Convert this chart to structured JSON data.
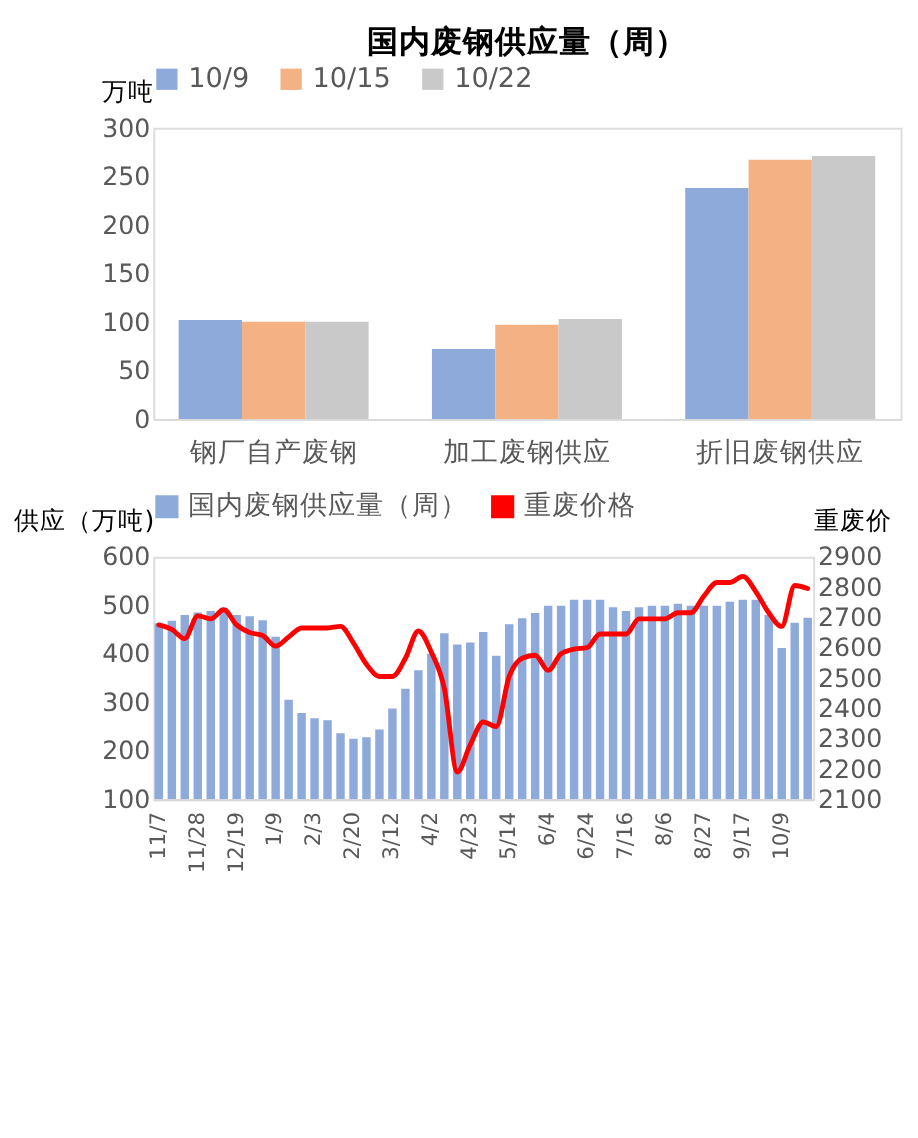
{
  "chart_data": [
    {
      "type": "bar",
      "title": "国内废钢供应量（周）",
      "ylabel": "万吨",
      "categories": [
        "钢厂自产废钢",
        "加工废钢供应",
        "折旧废钢供应"
      ],
      "series": [
        {
          "name": "10/9",
          "color": "#8eaadb",
          "values": [
            102,
            72,
            238
          ]
        },
        {
          "name": "10/15",
          "color": "#f4b183",
          "values": [
            100,
            97,
            267
          ]
        },
        {
          "name": "10/22",
          "color": "#c9c9c9",
          "values": [
            100,
            103,
            271
          ]
        }
      ],
      "ylim": [
        0,
        300
      ],
      "yticks": [
        0,
        50,
        100,
        150,
        200,
        250,
        300
      ],
      "grid": false,
      "legend": "top"
    },
    {
      "type": "bar",
      "ylabel": "供应（万吨)",
      "y2label": "重废价",
      "categories": [
        "11/7",
        null,
        null,
        "11/28",
        null,
        null,
        "12/19",
        null,
        null,
        "1/9",
        null,
        null,
        "2/3",
        null,
        null,
        "2/20",
        null,
        null,
        "3/12",
        null,
        null,
        "4/2",
        null,
        null,
        "4/23",
        null,
        null,
        "5/14",
        null,
        null,
        "6/4",
        null,
        null,
        "6/24",
        null,
        null,
        "7/16",
        null,
        null,
        "8/6",
        null,
        null,
        "8/27",
        null,
        null,
        "9/17",
        null,
        null,
        "10/9",
        null,
        null
      ],
      "series": [
        {
          "name": "国内废钢供应量（周）",
          "color": "#8eaadb",
          "values": [
            463,
            468,
            480,
            485,
            488,
            495,
            480,
            477,
            469,
            435,
            305,
            278,
            267,
            263,
            236,
            225,
            228,
            244,
            287,
            328,
            366,
            400,
            442,
            419,
            423,
            445,
            396,
            461,
            473,
            484,
            499,
            499,
            511,
            511,
            511,
            496,
            488,
            496,
            499,
            499,
            503,
            499,
            499,
            499,
            507,
            511,
            511,
            480,
            412,
            464,
            474
          ]
        },
        {
          "name": "重废价格",
          "type": "line",
          "axis": "y2",
          "color": "#ff0000",
          "values": [
            2675,
            2660,
            2630,
            2705,
            2695,
            2725,
            2675,
            2650,
            2640,
            2605,
            2635,
            2665,
            2665,
            2665,
            2670,
            2615,
            2545,
            2505,
            2505,
            2565,
            2655,
            2585,
            2465,
            2190,
            2280,
            2355,
            2340,
            2505,
            2565,
            2575,
            2525,
            2580,
            2595,
            2600,
            2645,
            2645,
            2645,
            2695,
            2695,
            2695,
            2715,
            2715,
            2770,
            2815,
            2815,
            2835,
            2785,
            2715,
            2670,
            2805,
            2795
          ]
        }
      ],
      "ylim": [
        100,
        600
      ],
      "yticks": [
        100,
        200,
        300,
        400,
        500,
        600
      ],
      "y2lim": [
        2100,
        2900
      ],
      "y2ticks": [
        2100,
        2200,
        2300,
        2400,
        2500,
        2600,
        2700,
        2800,
        2900
      ],
      "grid": false,
      "legend": "top"
    }
  ]
}
